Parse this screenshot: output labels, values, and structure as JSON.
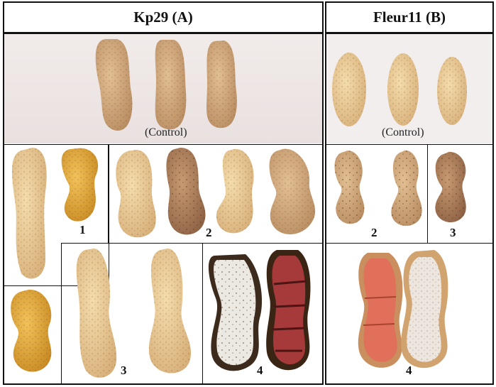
{
  "headers": {
    "a": "Kp29 (A)",
    "b": "Fleur11 (B)"
  },
  "labels": {
    "control_a": "(Control)",
    "control_b": "(Control)",
    "a_1": "1",
    "a_2": "2",
    "a_3": "3",
    "a_4": "4",
    "b_2": "2",
    "b_3": "3",
    "b_4": "4"
  },
  "colors": {
    "shell_tan": "#d4a979",
    "shell_dark": "#a87c54",
    "shell_yellow": "#e4a93a",
    "seed_red": "#a63a3a",
    "seed_salmon": "#e0705a",
    "border": "#111111"
  }
}
